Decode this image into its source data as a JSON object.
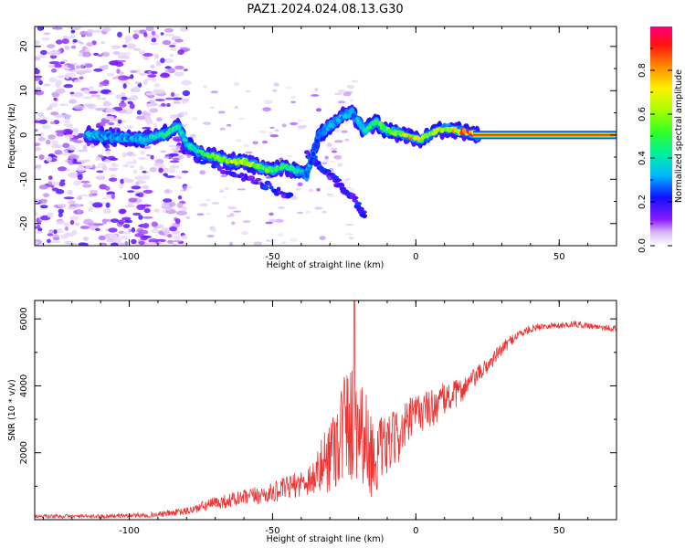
{
  "title": "PAZ1.2024.024.08.13.G30",
  "chart_data": [
    {
      "type": "heatmap",
      "xlabel": "Height of straight line (km)",
      "ylabel": "Frequency (Hz)",
      "xlim": [
        -133,
        70
      ],
      "ylim": [
        -25,
        24.5
      ],
      "xticks": [
        -100,
        -50,
        0,
        50
      ],
      "yticks": [
        -20,
        -10,
        0,
        10,
        20
      ],
      "colorbar": {
        "label": "Normalized spectral amplitude",
        "range": [
          0,
          1
        ],
        "ticks": [
          "0.0",
          "0.2",
          "0.4",
          "0.6",
          "0.8"
        ],
        "colormap": [
          "#ffffff",
          "#cfa8f0",
          "#7f00ff",
          "#0000ff",
          "#00bfff",
          "#00ff7f",
          "#7fff00",
          "#ffff00",
          "#ff7f00",
          "#ff0000",
          "#ff0080"
        ]
      },
      "ridge": {
        "description_free": true,
        "x": [
          -115,
          -105,
          -95,
          -88,
          -83,
          -80,
          -75,
          -70,
          -65,
          -60,
          -55,
          -50,
          -46,
          -42,
          -38,
          -34,
          -30,
          -26,
          -22,
          -18,
          -14,
          -10,
          -6,
          -2,
          2,
          6,
          10,
          14,
          18,
          22,
          70
        ],
        "freq": [
          0,
          -0.5,
          -1,
          0,
          2,
          -2,
          -4,
          -5,
          -6,
          -6,
          -7,
          -8,
          -7,
          -8,
          -9,
          0,
          2,
          4,
          5,
          1,
          3,
          1,
          0.5,
          -0.5,
          -1,
          0.5,
          1.5,
          1,
          0.5,
          0,
          0
        ],
        "amplitude": [
          0.35,
          0.3,
          0.35,
          0.45,
          0.5,
          0.35,
          0.45,
          0.55,
          0.6,
          0.65,
          0.55,
          0.5,
          0.45,
          0.4,
          0.3,
          0.3,
          0.3,
          0.35,
          0.3,
          0.4,
          0.45,
          0.55,
          0.6,
          0.75,
          0.6,
          0.55,
          0.6,
          0.7,
          0.85,
          0.95,
          0.95
        ]
      },
      "branches": [
        {
          "x": [
            -82,
            -74,
            -66,
            -58,
            -50,
            -44
          ],
          "freq": [
            -3,
            -6,
            -8,
            -10,
            -12,
            -14
          ]
        },
        {
          "x": [
            -38,
            -32,
            -27,
            -22,
            -18
          ],
          "freq": [
            -4,
            -8,
            -11,
            -14,
            -18
          ]
        }
      ]
    },
    {
      "type": "line",
      "xlabel": "Height of straight line (km)",
      "ylabel": "SNR (10 * v/v)",
      "xlim": [
        -133,
        70
      ],
      "ylim": [
        0,
        6550
      ],
      "xticks": [
        -100,
        -50,
        0,
        50
      ],
      "yticks": [
        2000,
        4000,
        6000
      ],
      "color": "#ee3333",
      "envelope": {
        "x": [
          -133,
          -110,
          -90,
          -80,
          -70,
          -60,
          -50,
          -40,
          -35,
          -30,
          -25,
          -20,
          -15,
          -10,
          -5,
          0,
          5,
          10,
          15,
          20,
          25,
          30,
          35,
          40,
          45,
          50,
          55,
          60,
          65,
          70
        ],
        "mean": [
          100,
          100,
          150,
          250,
          500,
          650,
          800,
          1100,
          1300,
          2000,
          2800,
          3000,
          1800,
          2200,
          2600,
          3200,
          3300,
          3600,
          3800,
          4200,
          4600,
          5100,
          5500,
          5700,
          5800,
          5800,
          5850,
          5800,
          5750,
          5700
        ],
        "spread": [
          60,
          60,
          80,
          120,
          200,
          250,
          300,
          400,
          600,
          1200,
          1800,
          1800,
          1200,
          900,
          800,
          600,
          600,
          500,
          400,
          300,
          250,
          200,
          150,
          120,
          100,
          100,
          100,
          100,
          100,
          100
        ]
      },
      "peak": {
        "x": -21.5,
        "y": 6550
      }
    }
  ]
}
